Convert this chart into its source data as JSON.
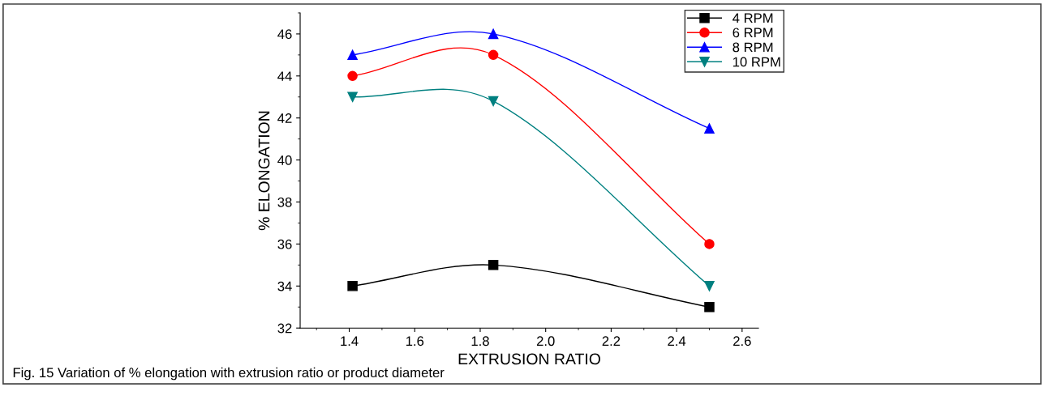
{
  "chart_data": {
    "type": "line",
    "xlabel": "EXTRUSION RATIO",
    "ylabel": "% ELONGATION",
    "x": [
      1.41,
      1.84,
      2.5
    ],
    "series": [
      {
        "name": "4 RPM",
        "color": "#000000",
        "marker": "square",
        "values": [
          34,
          35,
          33
        ]
      },
      {
        "name": "6 RPM",
        "color": "#ff0000",
        "marker": "circle",
        "values": [
          44,
          45,
          36
        ]
      },
      {
        "name": "8 RPM",
        "color": "#0000ff",
        "marker": "triangle",
        "values": [
          45,
          46,
          41.5
        ]
      },
      {
        "name": "10 RPM",
        "color": "#008080",
        "marker": "triangle_down",
        "values": [
          43,
          42.8,
          34
        ]
      }
    ],
    "xlim": [
      1.25,
      2.65
    ],
    "xticks": [
      1.4,
      1.6,
      1.8,
      {
        "value": 2.0,
        "label": "2.0"
      },
      2.2,
      2.4,
      2.6
    ],
    "ylim": [
      32,
      47
    ],
    "yticks": [
      32,
      34,
      36,
      38,
      40,
      42,
      44,
      46
    ],
    "legend": "top right",
    "grid": false,
    "annotations": [
      "Fig. 15 Variation of % elongation with extrusion ratio or product diameter"
    ]
  }
}
